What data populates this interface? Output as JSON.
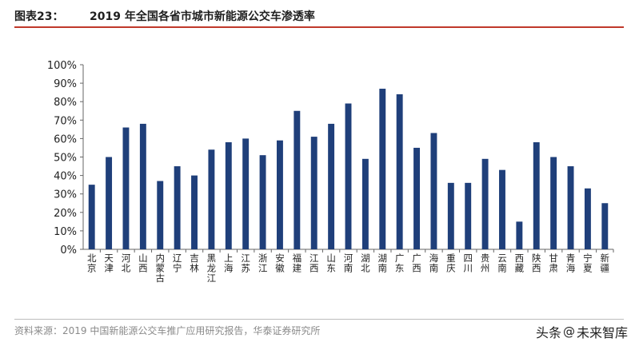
{
  "header": {
    "figure_label": "图表23：",
    "title": "2019 年全国各省市城市新能源公交车渗透率"
  },
  "chart_data": {
    "type": "bar",
    "categories": [
      "北京",
      "天津",
      "河北",
      "山西",
      "内蒙古",
      "辽宁",
      "吉林",
      "黑龙江",
      "上海",
      "江苏",
      "浙江",
      "安徽",
      "福建",
      "江西",
      "山东",
      "河南",
      "湖北",
      "湖南",
      "广东",
      "广西",
      "海南",
      "重庆",
      "四川",
      "贵州",
      "云南",
      "西藏",
      "陕西",
      "甘肃",
      "青海",
      "宁夏",
      "新疆"
    ],
    "values": [
      35,
      50,
      66,
      68,
      37,
      45,
      40,
      54,
      58,
      60,
      51,
      59,
      75,
      61,
      68,
      79,
      49,
      87,
      84,
      55,
      63,
      36,
      36,
      49,
      43,
      15,
      58,
      50,
      45,
      33,
      25
    ],
    "ylim": [
      0,
      100
    ],
    "yticks": [
      "0%",
      "10%",
      "20%",
      "30%",
      "40%",
      "50%",
      "60%",
      "70%",
      "80%",
      "90%",
      "100%"
    ],
    "bar_color": "#1f3f7a",
    "grid": false
  },
  "footer": {
    "source": "资料来源：2019 中国新能源公交车推广应用研究报告，华泰证券研究所"
  },
  "watermark": {
    "prefix": "头条",
    "at": "@",
    "name": "未来智库"
  }
}
